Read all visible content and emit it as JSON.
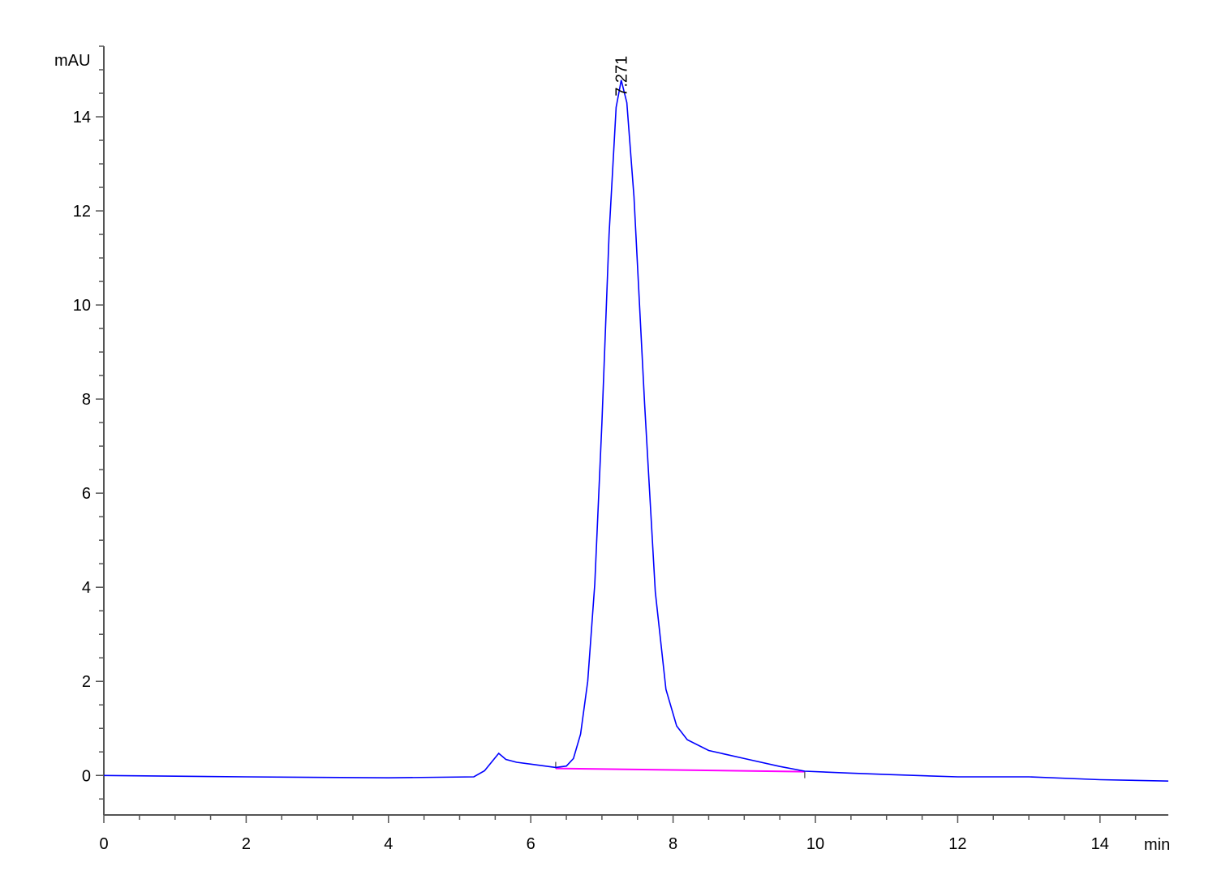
{
  "chart_data": {
    "type": "line",
    "title": "",
    "xlabel": "min",
    "ylabel": "mAU",
    "xlim": [
      0,
      14.96
    ],
    "ylim": [
      -0.84,
      15.5
    ],
    "x_ticks": [
      "0",
      "2",
      "4",
      "6",
      "8",
      "10",
      "12",
      "14"
    ],
    "y_ticks": [
      "0",
      "2",
      "4",
      "6",
      "8",
      "10",
      "12",
      "14"
    ],
    "x_minor_step": 0.5,
    "y_minor_step": 0.5,
    "grid": false,
    "series": [
      {
        "color": "#0000ff",
        "x": [
          0,
          2,
          4,
          5.2,
          5.35,
          5.55,
          5.65,
          5.8,
          6.0,
          6.35,
          6.5,
          6.6,
          6.7,
          6.8,
          6.9,
          7.0,
          7.1,
          7.2,
          7.271,
          7.35,
          7.45,
          7.6,
          7.75,
          7.9,
          8.05,
          8.2,
          8.5,
          9.0,
          9.5,
          9.85,
          10.5,
          11,
          12,
          13,
          14,
          14.96
        ],
        "y": [
          0,
          -0.03,
          -0.05,
          -0.03,
          0.1,
          0.47,
          0.34,
          0.28,
          0.24,
          0.17,
          0.2,
          0.36,
          0.88,
          2.0,
          4.07,
          7.5,
          11.5,
          14.2,
          14.78,
          14.3,
          12.3,
          7.9,
          3.9,
          1.83,
          1.05,
          0.76,
          0.53,
          0.36,
          0.19,
          0.09,
          0.05,
          0.02,
          -0.03,
          -0.03,
          -0.09,
          -0.12
        ]
      }
    ],
    "integration_baseline": {
      "color": "#ff00ff",
      "x": [
        6.35,
        9.85
      ],
      "y": [
        0.15,
        0.08
      ]
    },
    "peak_labels": [
      {
        "x": 7.271,
        "y": 14.78,
        "text": "7.271"
      }
    ]
  }
}
